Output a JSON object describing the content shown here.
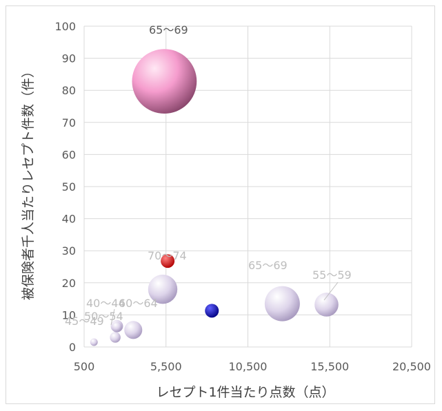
{
  "chart_data": {
    "type": "bubble",
    "title": "",
    "xlabel": "レセプト1件当たり点数（点）",
    "ylabel": "被保険者千人当たりレセプト件数（件）",
    "xlim": [
      500,
      20500
    ],
    "ylim": [
      0,
      100
    ],
    "xticks": [
      500,
      5500,
      10500,
      15500,
      20500
    ],
    "xtick_labels": [
      "500",
      "5,500",
      "10,500",
      "15,500",
      "20,500"
    ],
    "yticks": [
      0,
      10,
      20,
      30,
      40,
      50,
      60,
      70,
      80,
      90,
      100
    ],
    "ytick_labels": [
      "0",
      "10",
      "20",
      "30",
      "40",
      "50",
      "60",
      "70",
      "80",
      "90",
      "100"
    ],
    "grid": true,
    "points": [
      {
        "label": "",
        "x": 1100,
        "y": 1.5,
        "size": 0.3,
        "color": "#b4a7c8"
      },
      {
        "label": "45～49",
        "x": 2400,
        "y": 3.0,
        "size": 0.6,
        "color": "#b4a7c8"
      },
      {
        "label": "50～54",
        "x": 2500,
        "y": 6.5,
        "size": 0.8,
        "color": "#b4a7c8"
      },
      {
        "label": "60～64",
        "x": 3500,
        "y": 5.3,
        "size": 1.7,
        "color": "#b4a7c8"
      },
      {
        "label": "40～44",
        "x": 2500,
        "y": 6.3,
        "size": 0.5,
        "color": "#b4a7c8"
      },
      {
        "label": "",
        "x": 5300,
        "y": 18.0,
        "size": 4.5,
        "color": "#b4a7c8"
      },
      {
        "label": "70～74",
        "x": 5600,
        "y": 26.8,
        "size": 1.0,
        "color": "#e00000"
      },
      {
        "label": "",
        "x": 8300,
        "y": 11.3,
        "size": 1.0,
        "color": "#0000b0"
      },
      {
        "label": "65～69",
        "x": 12600,
        "y": 13.5,
        "size": 6.5,
        "color": "#b4a7c8"
      },
      {
        "label": "55～59",
        "x": 15300,
        "y": 13.2,
        "size": 3.0,
        "color": "#b4a7c8"
      },
      {
        "label": "65～69",
        "x": 5400,
        "y": 82.8,
        "size": 22.0,
        "color": "#f07cb8"
      }
    ],
    "data_labels": [
      "45～49",
      "50～54",
      "40～44",
      "60～64",
      "70～74",
      "65～69",
      "55～59",
      "65～69"
    ]
  }
}
